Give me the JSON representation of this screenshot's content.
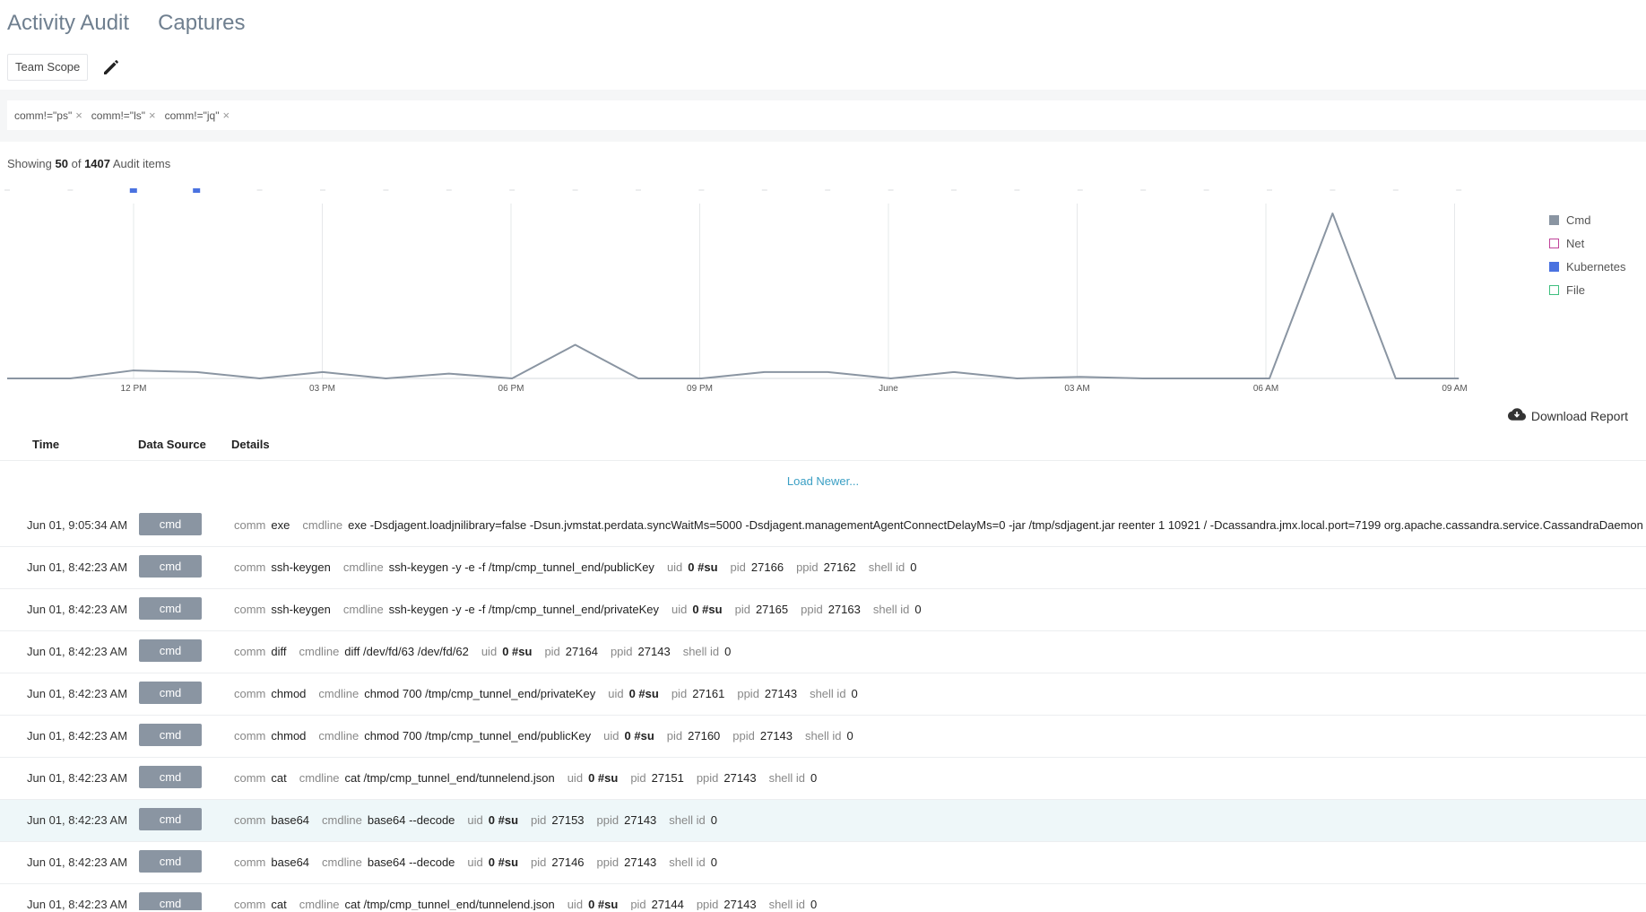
{
  "tabs": [
    "Activity Audit",
    "Captures"
  ],
  "scope": {
    "label": "Team Scope"
  },
  "filters": [
    "comm!=\"ps\"",
    "comm!=\"ls\"",
    "comm!=\"jq\""
  ],
  "showing": {
    "prefix": "Showing",
    "shown": "50",
    "of": "of",
    "total": "1407",
    "suffix": "Audit items"
  },
  "colors": {
    "cmd": "#8a95a2",
    "net": "#c0449a",
    "kubernetes": "#4a72e0",
    "file": "#3fbf7f",
    "link": "#3a9fc4"
  },
  "chart_data": {
    "type": "line",
    "x_tick_labels": [
      "12 PM",
      "03 PM",
      "06 PM",
      "09 PM",
      "June",
      "03 AM",
      "06 AM",
      "09 AM"
    ],
    "series": [
      {
        "name": "Cmd",
        "color": "#8a95a2",
        "values": [
          0,
          0,
          5,
          4,
          0,
          4,
          0,
          3,
          0,
          21,
          0,
          0,
          4,
          4,
          0,
          4,
          0,
          1,
          0,
          0,
          0,
          103,
          0,
          0
        ]
      },
      {
        "name": "Kubernetes",
        "color": "#4a72e0",
        "values": [
          0,
          0,
          1,
          1,
          0,
          0,
          0,
          0,
          0,
          0,
          0,
          0,
          0,
          0,
          0,
          0,
          0,
          0,
          0,
          0,
          0,
          0,
          0,
          0
        ]
      }
    ],
    "legend": [
      {
        "name": "Cmd",
        "color": "#8a95a2",
        "style": "filled"
      },
      {
        "name": "Net",
        "color": "#c0449a",
        "style": "outline"
      },
      {
        "name": "Kubernetes",
        "color": "#4a72e0",
        "style": "filled"
      },
      {
        "name": "File",
        "color": "#3fbf7f",
        "style": "outline"
      }
    ],
    "legend_position": "right",
    "grid": "vertical"
  },
  "download": {
    "label": "Download Report"
  },
  "table": {
    "headers": [
      "Time",
      "Data Source",
      "Details"
    ],
    "load_newer": "Load Newer...",
    "rows": [
      {
        "time": "Jun 01, 9:05:34 AM",
        "source": "cmd",
        "comm": "exe",
        "cmdline": "exe -Dsdjagent.loadjnilibrary=false -Dsun.jvmstat.perdata.syncWaitMs=5000 -Dsdjagent.managementAgentConnectDelayMs=0 -jar /tmp/sdjagent.jar reenter 1 10921 / -Dcassandra.jmx.local.port=7199 org.apache.cassandra.service.CassandraDaemon",
        "uid": "",
        "pid": "",
        "ppid": "",
        "shell_id": "",
        "highlight": false
      },
      {
        "time": "Jun 01, 8:42:23 AM",
        "source": "cmd",
        "comm": "ssh-keygen",
        "cmdline": "ssh-keygen -y -e -f /tmp/cmp_tunnel_end/publicKey",
        "uid": "0 #su",
        "pid": "27166",
        "ppid": "27162",
        "shell_id": "0",
        "highlight": false
      },
      {
        "time": "Jun 01, 8:42:23 AM",
        "source": "cmd",
        "comm": "ssh-keygen",
        "cmdline": "ssh-keygen -y -e -f /tmp/cmp_tunnel_end/privateKey",
        "uid": "0 #su",
        "pid": "27165",
        "ppid": "27163",
        "shell_id": "0",
        "highlight": false
      },
      {
        "time": "Jun 01, 8:42:23 AM",
        "source": "cmd",
        "comm": "diff",
        "cmdline": "diff /dev/fd/63 /dev/fd/62",
        "uid": "0 #su",
        "pid": "27164",
        "ppid": "27143",
        "shell_id": "0",
        "highlight": false
      },
      {
        "time": "Jun 01, 8:42:23 AM",
        "source": "cmd",
        "comm": "chmod",
        "cmdline": "chmod 700 /tmp/cmp_tunnel_end/privateKey",
        "uid": "0 #su",
        "pid": "27161",
        "ppid": "27143",
        "shell_id": "0",
        "highlight": false
      },
      {
        "time": "Jun 01, 8:42:23 AM",
        "source": "cmd",
        "comm": "chmod",
        "cmdline": "chmod 700 /tmp/cmp_tunnel_end/publicKey",
        "uid": "0 #su",
        "pid": "27160",
        "ppid": "27143",
        "shell_id": "0",
        "highlight": false
      },
      {
        "time": "Jun 01, 8:42:23 AM",
        "source": "cmd",
        "comm": "cat",
        "cmdline": "cat /tmp/cmp_tunnel_end/tunnelend.json",
        "uid": "0 #su",
        "pid": "27151",
        "ppid": "27143",
        "shell_id": "0",
        "highlight": false
      },
      {
        "time": "Jun 01, 8:42:23 AM",
        "source": "cmd",
        "comm": "base64",
        "cmdline": "base64 --decode",
        "uid": "0 #su",
        "pid": "27153",
        "ppid": "27143",
        "shell_id": "0",
        "highlight": true
      },
      {
        "time": "Jun 01, 8:42:23 AM",
        "source": "cmd",
        "comm": "base64",
        "cmdline": "base64 --decode",
        "uid": "0 #su",
        "pid": "27146",
        "ppid": "27143",
        "shell_id": "0",
        "highlight": false
      },
      {
        "time": "Jun 01, 8:42:23 AM",
        "source": "cmd",
        "comm": "cat",
        "cmdline": "cat /tmp/cmp_tunnel_end/tunnelend.json",
        "uid": "0 #su",
        "pid": "27144",
        "ppid": "27143",
        "shell_id": "0",
        "highlight": false
      }
    ],
    "field_labels": {
      "comm": "comm",
      "cmdline": "cmdline",
      "uid": "uid",
      "pid": "pid",
      "ppid": "ppid",
      "shell_id": "shell id"
    }
  }
}
